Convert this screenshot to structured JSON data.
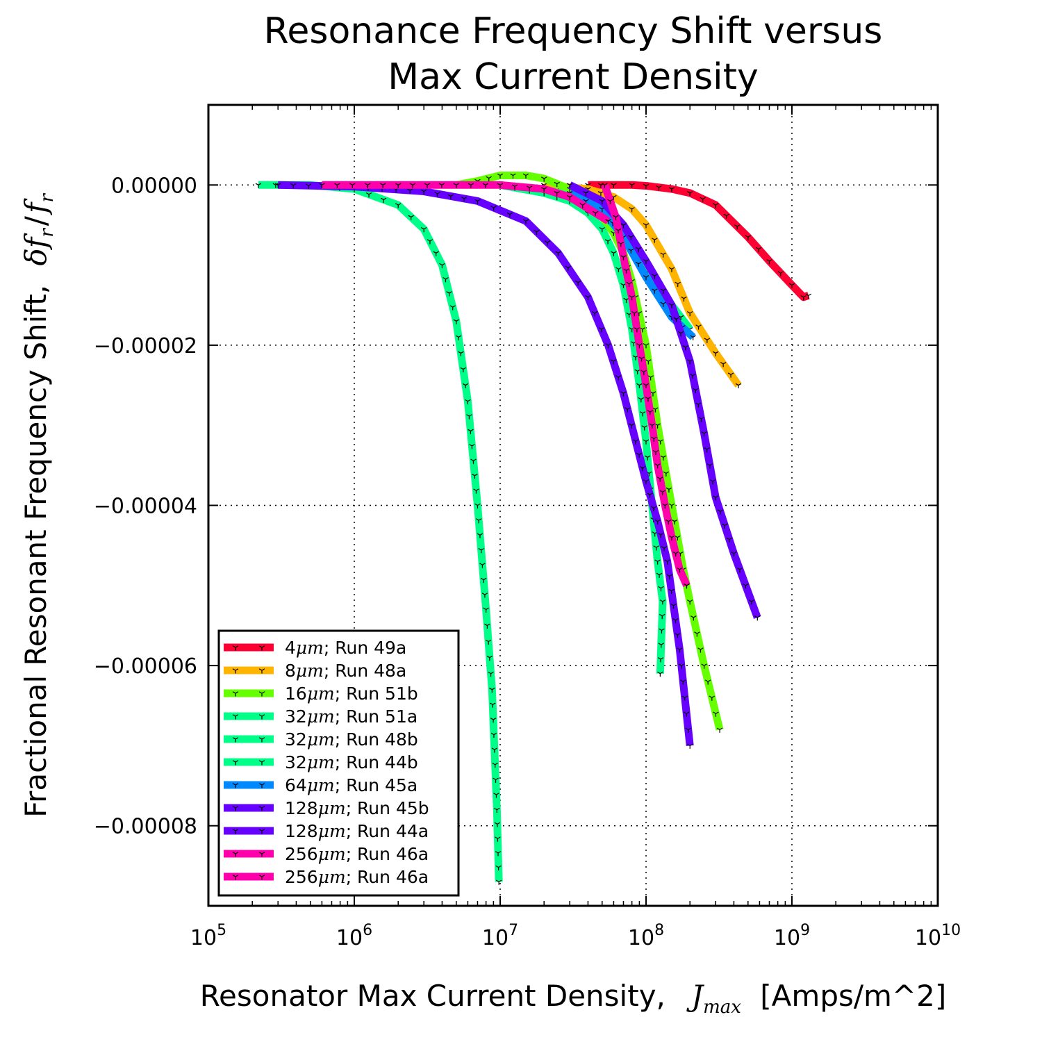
{
  "chart_data": {
    "type": "line",
    "title": [
      "Resonance Frequency Shift versus",
      "Max Current Density"
    ],
    "xlabel": {
      "text": "Resonator Max Current Density,",
      "symbol": "J",
      "sub": "max",
      "unit": "[Amps/m^2]"
    },
    "ylabel": {
      "text": "Fractional Resonant Frequency Shift,",
      "symbol": "δf",
      "sub1": "r",
      "slash": "/",
      "symbol2": "f",
      "sub2": "r"
    },
    "x_scale": "log",
    "xlim": [
      100000,
      10000000000
    ],
    "ylim": [
      -9e-05,
      1e-05
    ],
    "x_ticks": [
      {
        "base": "10",
        "exp": "5"
      },
      {
        "base": "10",
        "exp": "6"
      },
      {
        "base": "10",
        "exp": "7"
      },
      {
        "base": "10",
        "exp": "8"
      },
      {
        "base": "10",
        "exp": "9"
      },
      {
        "base": "10",
        "exp": "10"
      }
    ],
    "y_ticks": [
      "0.00000",
      "−0.00002",
      "−0.00004",
      "−0.00006",
      "−0.00008"
    ],
    "y_tick_values": [
      0,
      -2e-05,
      -4e-05,
      -6e-05,
      -8e-05
    ],
    "grid": true,
    "legend_position": "lower-left",
    "series": [
      {
        "size": "4",
        "unit": "μm",
        "run": "; Run 49a",
        "color": "#ff0033",
        "x": [
          40000000,
          60000000,
          80000000,
          100000000,
          150000000,
          200000000,
          300000000,
          500000000,
          700000000,
          1000000000,
          1200000000,
          1300000000
        ],
        "y": [
          0,
          0,
          0,
          -1e-07,
          -5e-07,
          -1e-06,
          -2.5e-06,
          -6.5e-06,
          -9.5e-06,
          -1.25e-05,
          -1.4e-05,
          -1.38e-05
        ]
      },
      {
        "size": "8",
        "unit": "μm",
        "run": "; Run 48a",
        "color": "#ffb400",
        "x": [
          20000000,
          40000000,
          60000000,
          80000000,
          100000000,
          150000000,
          200000000,
          300000000,
          430000000
        ],
        "y": [
          0,
          -5e-07,
          -1.5e-06,
          -3e-06,
          -5e-06,
          -1.05e-05,
          -1.6e-05,
          -2.1e-05,
          -2.5e-05
        ]
      },
      {
        "size": "16",
        "unit": "μm",
        "run": "; Run 51b",
        "color": "#66ff00",
        "x": [
          5000000,
          7000000,
          10000000,
          15000000,
          20000000,
          30000000,
          40000000,
          50000000,
          60000000,
          70000000,
          80000000,
          100000000,
          120000000,
          150000000,
          180000000,
          200000000,
          250000000,
          320000000
        ],
        "y": [
          0,
          5e-07,
          1.2e-06,
          1.2e-06,
          8e-07,
          -5e-07,
          -2e-06,
          -4e-06,
          -6e-06,
          -8.5e-06,
          -1.2e-05,
          -2e-05,
          -3e-05,
          -4e-05,
          -4.8e-05,
          -5.2e-05,
          -6e-05,
          -6.8e-05
        ]
      },
      {
        "size": "32",
        "unit": "μm",
        "run": "; Run 51a",
        "color": "#00ff88",
        "x": [
          20000000,
          40000000,
          60000000,
          80000000,
          100000000,
          150000000,
          200000000
        ],
        "y": [
          -5e-07,
          -2e-06,
          -5e-06,
          -8e-06,
          -1.1e-05,
          -1.5e-05,
          -1.8e-05
        ]
      },
      {
        "size": "32",
        "unit": "μm",
        "run": "; Run 48b",
        "color": "#00ff88",
        "x": [
          220000,
          500000,
          1000000,
          2000000,
          3000000,
          4000000,
          5000000,
          6000000,
          7000000,
          8000000,
          8800000,
          9500000,
          9800000
        ],
        "y": [
          0,
          0,
          -5e-07,
          -2.5e-06,
          -5.5e-06,
          -1e-05,
          -1.7e-05,
          -2.7e-05,
          -4e-05,
          -5.3e-05,
          -6.3e-05,
          -7.8e-05,
          -8.7e-05
        ]
      },
      {
        "size": "32",
        "unit": "μm",
        "run": "; Run 44b",
        "color": "#00ff88",
        "x": [
          10000000,
          20000000,
          30000000,
          40000000,
          50000000,
          60000000,
          70000000,
          80000000,
          90000000,
          100000000,
          110000000,
          120000000,
          130000000,
          125000000
        ],
        "y": [
          0,
          -1e-06,
          -2e-06,
          -3.5e-06,
          -5.5e-06,
          -8.5e-06,
          -1.25e-05,
          -1.8e-05,
          -2.5e-05,
          -3.2e-05,
          -4e-05,
          -4.7e-05,
          -5.2e-05,
          -6.1e-05
        ]
      },
      {
        "size": "64",
        "unit": "μm",
        "run": "; Run 45a",
        "color": "#0088ff",
        "x": [
          30000000,
          50000000,
          70000000,
          100000000,
          150000000,
          210000000
        ],
        "y": [
          -1e-06,
          -3e-06,
          -6.5e-06,
          -1.15e-05,
          -1.65e-05,
          -1.9e-05
        ]
      },
      {
        "size": "128",
        "unit": "μm",
        "run": "; Run 45b",
        "color": "#6600ff",
        "x": [
          300000,
          1000000,
          3000000,
          7000000,
          15000000,
          25000000,
          40000000,
          55000000,
          70000000,
          85000000,
          100000000,
          120000000,
          140000000,
          170000000,
          200000000
        ],
        "y": [
          0,
          -2e-07,
          -8e-07,
          -2e-06,
          -4.5e-06,
          -8.5e-06,
          -1.4e-05,
          -2e-05,
          -2.6e-05,
          -3.2e-05,
          -3.7e-05,
          -4.2e-05,
          -4.7e-05,
          -5.8e-05,
          -7e-05
        ]
      },
      {
        "size": "128",
        "unit": "μm",
        "run": "; Run 44a",
        "color": "#6600ff",
        "x": [
          30000000,
          50000000,
          70000000,
          100000000,
          150000000,
          200000000,
          250000000,
          300000000,
          400000000,
          580000000
        ],
        "y": [
          0,
          -2e-06,
          -5e-06,
          -9.5e-06,
          -1.5e-05,
          -2.2e-05,
          -3.1e-05,
          -3.9e-05,
          -4.6e-05,
          -5.4e-05
        ]
      },
      {
        "size": "256",
        "unit": "μm",
        "run": "; Run 46a",
        "color": "#ff00aa",
        "x": [
          600000,
          2000000,
          5000000,
          10000000,
          20000000,
          30000000,
          45000000,
          55000000
        ],
        "y": [
          0,
          0,
          0,
          0,
          -5e-07,
          -1.5e-06,
          -3.5e-06,
          -4.5e-06
        ]
      },
      {
        "size": "256",
        "unit": "μm",
        "run": "; Run 46a",
        "color": "#ff00aa",
        "x": [
          52000000,
          62000000,
          70000000,
          80000000,
          90000000,
          100000000,
          110000000,
          120000000,
          135000000,
          150000000,
          170000000,
          190000000
        ],
        "y": [
          0,
          -4e-06,
          -9e-06,
          -1.4e-05,
          -2e-05,
          -2.5e-05,
          -3e-05,
          -3.5e-05,
          -4e-05,
          -4.4e-05,
          -4.8e-05,
          -5e-05
        ]
      }
    ]
  }
}
